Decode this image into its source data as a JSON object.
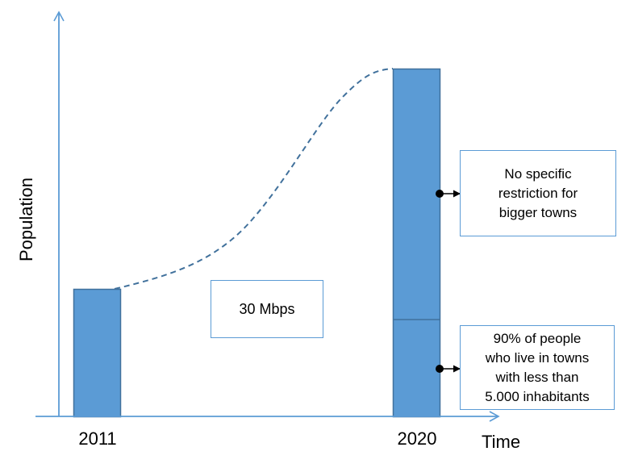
{
  "diagram": {
    "axis_y_title": "Population",
    "axis_x_title": "Time",
    "x_labels": {
      "left": "2011",
      "right": "2020"
    },
    "center_note": "30 Mbps",
    "callouts": {
      "upper": "No specific\nrestriction for\nbigger towns",
      "lower": "90% of people\nwho live in towns\nwith less than\n5.000 inhabitants"
    },
    "colors": {
      "axis": "#5b9bd5",
      "bar_fill": "#5b9bd5",
      "bar_stroke": "#41719c",
      "curve": "#41719c",
      "box_border": "#5b9bd5",
      "marker": "#000000"
    }
  }
}
